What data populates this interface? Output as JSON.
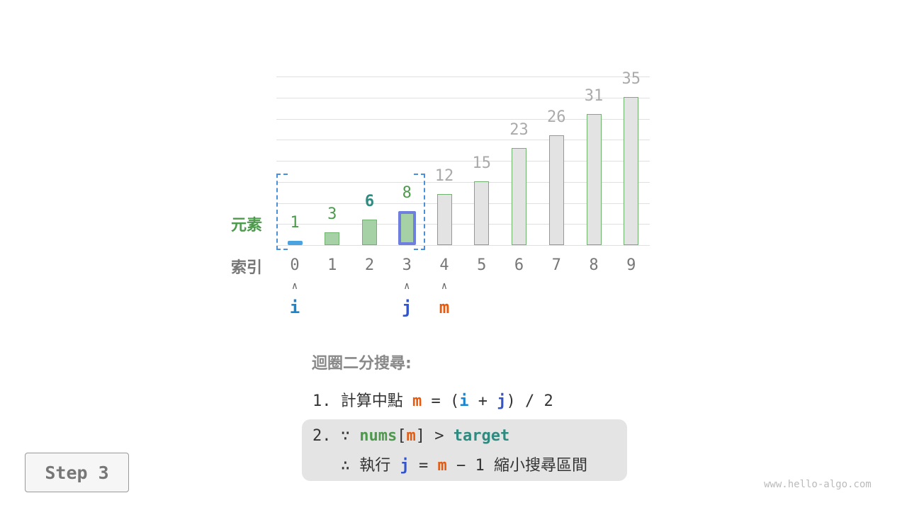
{
  "row_labels": {
    "elements": "元素",
    "indices": "索引"
  },
  "array": {
    "values": [
      1,
      3,
      6,
      8,
      12,
      15,
      23,
      26,
      31,
      35
    ],
    "indices": [
      "0",
      "1",
      "2",
      "3",
      "4",
      "5",
      "6",
      "7",
      "8",
      "9"
    ],
    "active_range": [
      0,
      3
    ],
    "target_index": 2
  },
  "pointers": {
    "i": {
      "label": "i",
      "index": 0,
      "color": "#1a86d0"
    },
    "j": {
      "label": "j",
      "index": 3,
      "color": "#3355cc"
    },
    "m": {
      "label": "m",
      "index": 4,
      "color": "#e8590c"
    }
  },
  "colors": {
    "active_bar": "#a6d1a6",
    "inactive_bar": "#e3e3e3",
    "active_label": "#4d9a4d",
    "inactive_label": "#aaaaaa",
    "target_label": "#2f8a80",
    "range_box": "#4a90d9"
  },
  "text": {
    "title": "迴圈二分搜尋:",
    "step1_num": "1.",
    "step1_text": "計算中點",
    "m": "m",
    "eq": "=",
    "lp": "(",
    "i": "i",
    "plus": "+",
    "j": "j",
    "rp": ")",
    "div": "/ 2",
    "step2_num": "2.",
    "because": "∵",
    "nums": "nums",
    "lb": "[",
    "rb": "]",
    "gt": ">",
    "target": "target",
    "therefore": "∴",
    "exec": "執行",
    "minus": "− 1",
    "shrink": "縮小搜尋區間"
  },
  "step_button": "Step 3",
  "watermark": "www.hello-algo.com"
}
